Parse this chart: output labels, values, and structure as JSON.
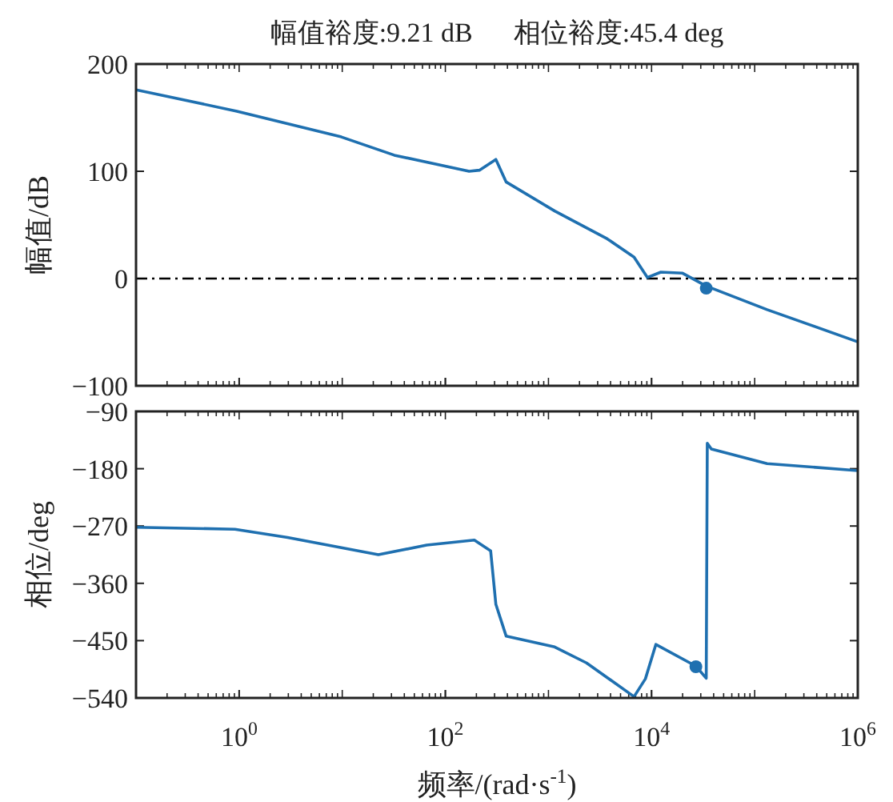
{
  "chart_data": [
    {
      "type": "line",
      "title": "幅值裕度:9.21 dB      相位裕度:45.4 deg",
      "ylabel": "幅值/dB",
      "log": "x",
      "tick_labels": "y",
      "xlim": [
        0.1,
        1000000
      ],
      "ylim": [
        -100,
        200
      ],
      "xticks": [
        {
          "value": 1,
          "label": null
        },
        {
          "value": 100,
          "label": null
        },
        {
          "value": 10000,
          "label": null
        },
        {
          "value": 1000000,
          "label": null
        }
      ],
      "yticks": [
        -100,
        0,
        100,
        200
      ],
      "ref_lines": [
        {
          "axis": "y",
          "value": 0,
          "color": "#000000",
          "line_style": "dashdot"
        }
      ],
      "series": [
        {
          "type": "line",
          "color": "#1f70b0",
          "marker": "none",
          "x": [
            0.1,
            0.95,
            9.8,
            32,
            170,
            214,
            309,
            389,
            1150,
            3720,
            6760,
            9120,
            12300,
            20000,
            33900,
            132000,
            1000000
          ],
          "values": [
            176,
            156,
            132,
            115,
            100,
            101,
            111,
            90,
            63,
            37,
            20,
            1,
            6,
            5,
            -7,
            -29,
            -59
          ]
        },
        {
          "type": "scatter",
          "color": "#1f70b0",
          "marker": "circle",
          "x": [
            33900
          ],
          "values": [
            -9
          ]
        }
      ]
    },
    {
      "type": "line",
      "ylabel": "相位/deg",
      "xlabel": "频率/(rad·s$^{-1}$)",
      "log": "x",
      "xlim": [
        0.1,
        1000000
      ],
      "ylim": [
        -540,
        -90
      ],
      "xticks": [
        {
          "value": 1,
          "label": "10$^{0}$"
        },
        {
          "value": 100,
          "label": "10$^{2}$"
        },
        {
          "value": 10000,
          "label": "10$^{4}$"
        },
        {
          "value": 1000000,
          "label": "10$^{6}$"
        }
      ],
      "yticks": [
        -540,
        -450,
        -360,
        -270,
        -180,
        -90
      ],
      "series": [
        {
          "type": "line",
          "color": "#1f70b0",
          "marker": "none",
          "x": [
            0.1,
            0.91,
            2.95,
            22.4,
            66,
            191,
            275,
            309,
            389,
            1150,
            2340,
            6760,
            8710,
            11000,
            26900,
            33900,
            34700,
            38000,
            132000,
            1000000
          ],
          "values": [
            -272,
            -275,
            -288,
            -315,
            -300,
            -292,
            -309,
            -393,
            -443,
            -460,
            -485,
            -538,
            -510,
            -456,
            -490,
            -509,
            -140,
            -149,
            -172,
            -183
          ]
        },
        {
          "type": "scatter",
          "color": "#1f70b0",
          "marker": "circle",
          "x": [
            26900
          ],
          "values": [
            -491
          ]
        }
      ]
    }
  ]
}
